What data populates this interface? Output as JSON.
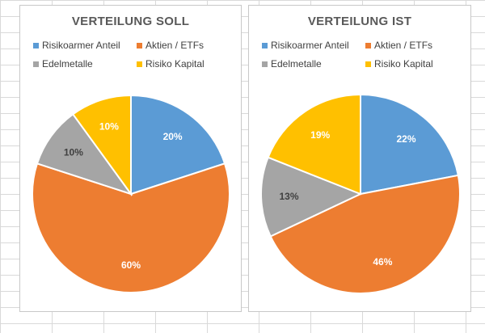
{
  "chart_data": [
    {
      "type": "pie",
      "title": "VERTEILUNG SOLL",
      "categories": [
        "Risikoarmer Anteil",
        "Aktien / ETFs",
        "Edelmetalle",
        "Risiko Kapital"
      ],
      "values": [
        20,
        60,
        10,
        10
      ],
      "labels": [
        "20%",
        "60%",
        "10%",
        "10%"
      ],
      "colors": [
        "#5b9bd5",
        "#ed7d31",
        "#a5a5a5",
        "#ffc000"
      ],
      "legend_position": "top"
    },
    {
      "type": "pie",
      "title": "VERTEILUNG IST",
      "categories": [
        "Risikoarmer Anteil",
        "Aktien / ETFs",
        "Edelmetalle",
        "Risiko Kapital"
      ],
      "values": [
        22,
        46,
        13,
        19
      ],
      "labels": [
        "22%",
        "46%",
        "13%",
        "19%"
      ],
      "colors": [
        "#5b9bd5",
        "#ed7d31",
        "#a5a5a5",
        "#ffc000"
      ],
      "legend_position": "top"
    }
  ]
}
